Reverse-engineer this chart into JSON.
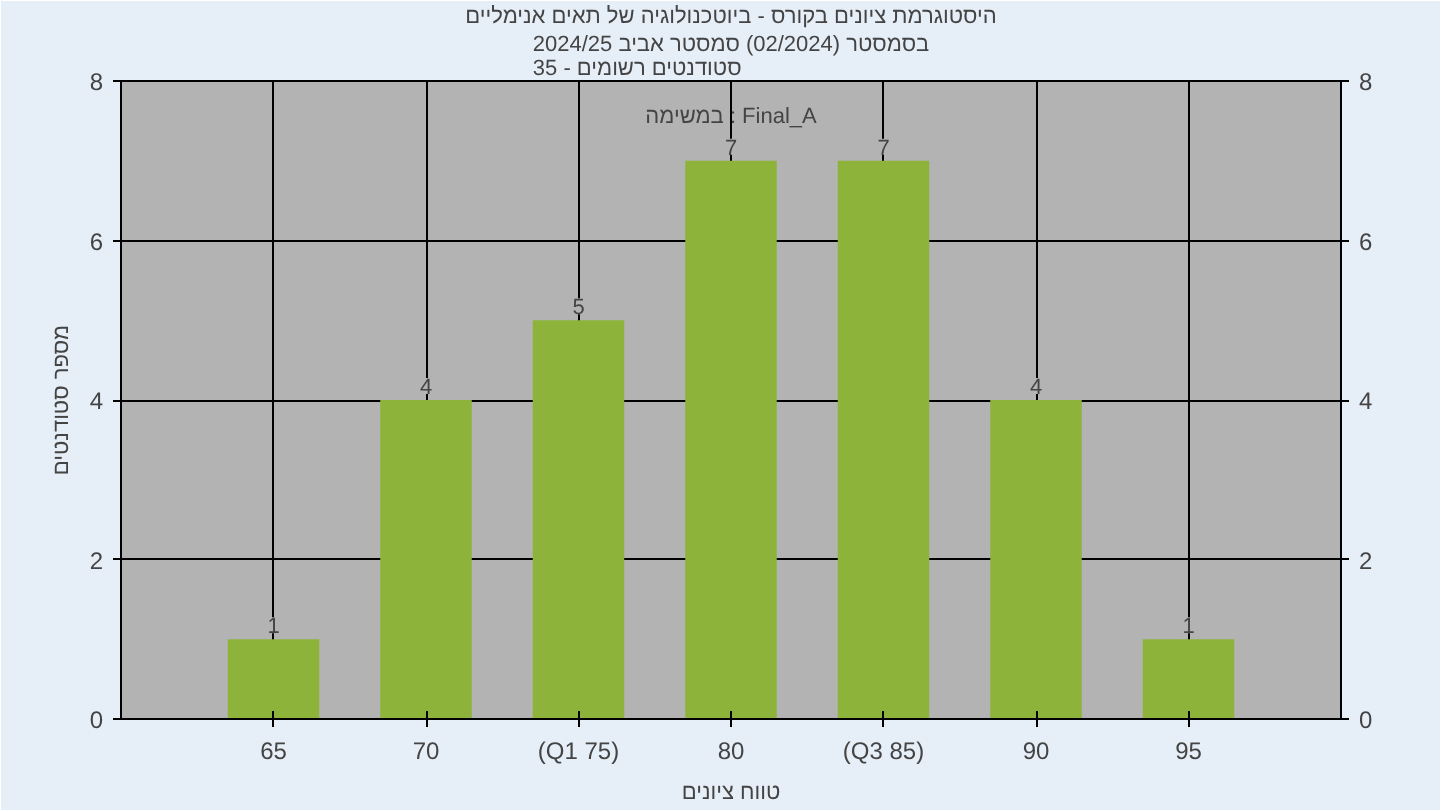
{
  "chart_data": {
    "type": "bar",
    "title": "היסטוגרמת ציונים בקורס - ביוטכנולוגיה של תאים אנימליים",
    "subtitle": "בסמסטר (02/2024) סמסטר אביב 2024/25\nסטודנטים רשומים - 35",
    "xlabel": "טווח ציונים",
    "ylabel": "מספר סטודנטים",
    "categories": [
      "65",
      "70",
      "(Q1 75)",
      "80",
      "(Q3 85)",
      "90",
      "95"
    ],
    "series": [
      {
        "color": "#8db33a",
        "values": [
          1,
          4,
          5,
          7,
          7,
          4,
          1
        ]
      }
    ],
    "data_labels": true,
    "annotations": [
      "במשימה : Final_A"
    ],
    "ylim": [
      0,
      8
    ],
    "yticks": [
      0,
      2,
      4,
      6,
      8
    ],
    "y2lim": [
      0,
      8
    ],
    "y2ticks": [
      0,
      2,
      4,
      6,
      8
    ],
    "grid": true
  }
}
